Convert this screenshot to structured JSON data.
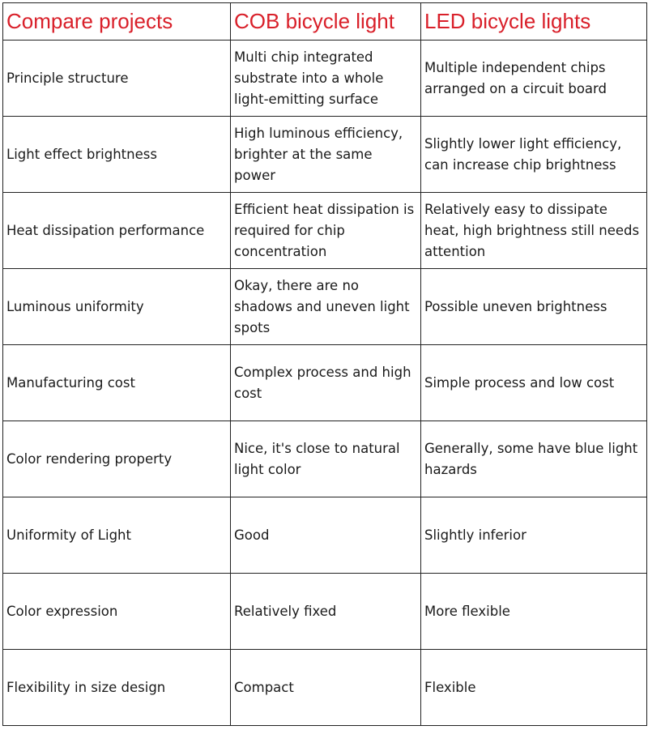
{
  "table": {
    "headers": [
      "Compare projects",
      "COB bicycle light",
      "LED bicycle lights"
    ],
    "header_color": "#d9202a",
    "rows": [
      [
        "Principle structure",
        "Multi chip integrated substrate into a whole light-emitting surface",
        "Multiple independent chips arranged on a circuit board"
      ],
      [
        "Light effect brightness",
        "High luminous efficiency, brighter at the same power",
        "Slightly lower light efficiency, can increase chip brightness"
      ],
      [
        "Heat dissipation performance",
        "Efficient heat dissipation is required for chip concentration",
        "Relatively easy to dissipate heat, high brightness still needs attention"
      ],
      [
        "Luminous uniformity",
        "Okay, there are no shadows and uneven light spots",
        "Possible uneven brightness"
      ],
      [
        "Manufacturing cost",
        "Complex process and high cost",
        "Simple process and low cost"
      ],
      [
        "Color rendering property",
        "Nice, it's close to natural light color",
        "Generally, some have blue light hazards"
      ],
      [
        "Uniformity of Light",
        "Good",
        "Slightly inferior"
      ],
      [
        "Color expression",
        "Relatively fixed",
        "More flexible"
      ],
      [
        "Flexibility in size design",
        "Compact",
        "Flexible"
      ]
    ]
  }
}
